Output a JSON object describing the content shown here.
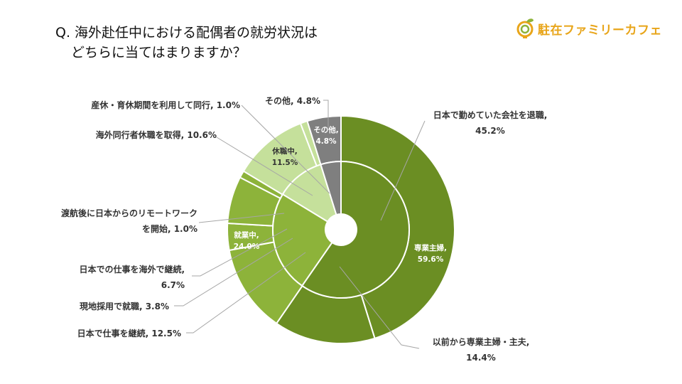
{
  "question": {
    "line1": "Q. 海外赴任中における配偶者の就労状況は",
    "line2": "どちらに当てはまりますか？"
  },
  "logo": {
    "text": "駐在ファミリーカフェ",
    "icon": "globe-leaf-icon"
  },
  "chart_data": {
    "type": "donut",
    "title": "海外赴任中における配偶者の就労状況",
    "unit": "%",
    "inner": [
      {
        "name": "専業主婦",
        "value": 59.6,
        "label": "専業主婦,",
        "pct": "59.6%",
        "color": "#6b8e23"
      },
      {
        "name": "就業中",
        "value": 24.0,
        "label": "就業中,",
        "pct": "24.0%",
        "color": "#8db33a"
      },
      {
        "name": "休職中",
        "value": 11.5,
        "label": "休職中,",
        "pct": "11.5%",
        "color": "#c5e09b"
      },
      {
        "name": "その他",
        "value": 4.8,
        "label": "その他,",
        "pct": "4.8%",
        "color": "#7f7f7f"
      }
    ],
    "outer": [
      {
        "name": "日本で勤めていた会社を退職",
        "value": 45.2,
        "label_lines": [
          "日本で勤めていた会社を退職,",
          "45.2%"
        ],
        "color": "#6b8e23"
      },
      {
        "name": "以前から専業主婦・主夫",
        "value": 14.4,
        "label_lines": [
          "以前から専業主婦・主夫,",
          "14.4%"
        ],
        "color": "#6b8e23"
      },
      {
        "name": "日本で仕事を継続",
        "value": 12.5,
        "label_lines": [
          "日本で仕事を継続, 12.5%"
        ],
        "color": "#8db33a"
      },
      {
        "name": "現地採用で就職",
        "value": 3.8,
        "label_lines": [
          "現地採用で就職, 3.8%"
        ],
        "color": "#8db33a"
      },
      {
        "name": "日本での仕事を海外で継続",
        "value": 6.7,
        "label_lines": [
          "日本での仕事を海外で継続,",
          "6.7%"
        ],
        "color": "#8db33a"
      },
      {
        "name": "渡航後に日本からのリモートワークを開始",
        "value": 1.0,
        "label_lines": [
          "渡航後に日本からのリモートワーク",
          "を開始, 1.0%"
        ],
        "color": "#8db33a"
      },
      {
        "name": "海外同行者休職を取得",
        "value": 10.6,
        "label_lines": [
          "海外同行者休職を取得, 10.6%"
        ],
        "color": "#c5e09b"
      },
      {
        "name": "産休・育休期間を利用して同行",
        "value": 1.0,
        "label_lines": [
          "産休・育休期間を利用して同行, 1.0%"
        ],
        "color": "#c5e09b"
      },
      {
        "name": "その他",
        "value": 4.8,
        "label_lines": [
          "その他, 4.8%"
        ],
        "color": "#7f7f7f"
      }
    ]
  }
}
